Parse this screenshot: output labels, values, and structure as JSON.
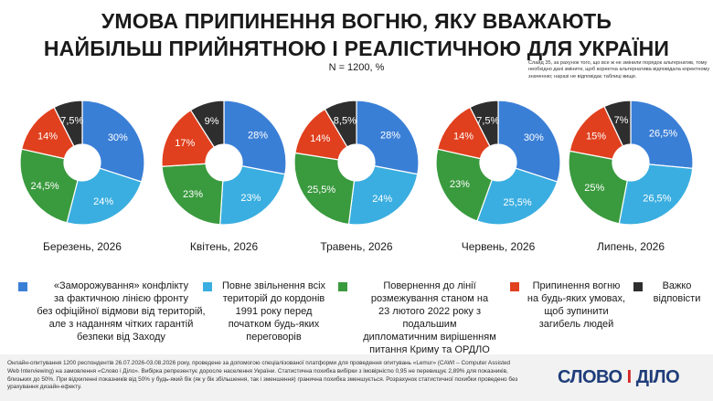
{
  "title_line1": "УМОВА ПРИПИНЕННЯ ВОГНЮ, ЯКУ ВВАЖАЮТЬ",
  "title_line2": "НАЙБІЛЬШ ПРИЙНЯТНОЮ І РЕАЛІСТИЧНОЮ ДЛЯ УКРАЇНИ",
  "subtitle": "N = 1200, %",
  "note": "Слайд 35, за рахунок того, що все ж не змінили порядок альтернатив, тому необхідно дані змінити, щоб коректна альтернатива відповідала коректному значенню; наразі не відповідає таблиці вище.",
  "colors": {
    "frozen": "#3a7fd6",
    "withdrawal": "#3aaee0",
    "return1991": "#3a9a3e",
    "cessation": "#e0401e",
    "dontknow": "#2e2e2e"
  },
  "legend": [
    {
      "key": "frozen",
      "text": "«Заморожування» конфлікту\nза фактичною лінією фронту\nбез офіційної відмови від територій,\nале з наданням чітких гарантій\nбезпеки від Заходу"
    },
    {
      "key": "withdrawal",
      "text": "Повне звільнення всіх\nтериторій до кордонів\n1991 року перед\nпочатком будь-яких\nпереговорів"
    },
    {
      "key": "return1991",
      "text": "Повернення до лінії\nрозмежування станом на\n23 лютого 2022 року з подальшим\nдипломатичним вирішенням\nпитання Криму та ОРДЛО"
    },
    {
      "key": "cessation",
      "text": "Припинення вогню\nна будь-яких умовах,\nщоб зупинити\nзагибель людей"
    },
    {
      "key": "dontknow",
      "text": "Важко\nвідповісти"
    }
  ],
  "chart_data": [
    {
      "type": "pie",
      "title": "Березень, 2026",
      "categories": [
        "frozen",
        "withdrawal",
        "return1991",
        "cessation",
        "dontknow"
      ],
      "values": [
        30,
        24,
        24.5,
        14,
        7.5
      ],
      "labels": [
        "30%",
        "24%",
        "24,5%",
        "14%",
        "7,5%"
      ]
    },
    {
      "type": "pie",
      "title": "Квітень, 2026",
      "categories": [
        "frozen",
        "withdrawal",
        "return1991",
        "cessation",
        "dontknow"
      ],
      "values": [
        28,
        23,
        23,
        17,
        9
      ],
      "labels": [
        "28%",
        "23%",
        "23%",
        "17%",
        "9%"
      ]
    },
    {
      "type": "pie",
      "title": "Травень, 2026",
      "categories": [
        "frozen",
        "withdrawal",
        "return1991",
        "cessation",
        "dontknow"
      ],
      "values": [
        28,
        24,
        25.5,
        14,
        8.5
      ],
      "labels": [
        "28%",
        "24%",
        "25,5%",
        "14%",
        "8,5%"
      ]
    },
    {
      "type": "pie",
      "title": "Червень, 2026",
      "categories": [
        "frozen",
        "withdrawal",
        "return1991",
        "cessation",
        "dontknow"
      ],
      "values": [
        30,
        25.5,
        23,
        14,
        7.5
      ],
      "labels": [
        "30%",
        "25,5%",
        "23%",
        "14%",
        "7,5%"
      ]
    },
    {
      "type": "pie",
      "title": "Липень, 2026",
      "categories": [
        "frozen",
        "withdrawal",
        "return1991",
        "cessation",
        "dontknow"
      ],
      "values": [
        26.5,
        26.5,
        25,
        15,
        7
      ],
      "labels": [
        "26,5%",
        "26,5%",
        "25%",
        "15%",
        "7%"
      ]
    }
  ],
  "footer": "Онлайн-опитування 1200 респондентів 26.07.2026-03.08.2026 року, проведене за допомогою спеціалізованої платформи для проведення опитувань «Lemur» (CAWI – Computer Assisted Web Interviewing) на замовлення «Слово і Діло». Вибірка репрезентує доросле населення України. Статистична похибка вибірки з імовірністю 0,95 не перевищує 2,89% для показників, близьких до 50%. При відхиленні показників від 50% у будь-який бік (як у бік збільшення, так і зменшення) гранична похибка зменшується. Розрахунок статистичної похибки проведено без урахування дизайн-ефекту.",
  "logo": {
    "left": "СЛОВО",
    "sep": "І",
    "right": "ДІЛО"
  }
}
